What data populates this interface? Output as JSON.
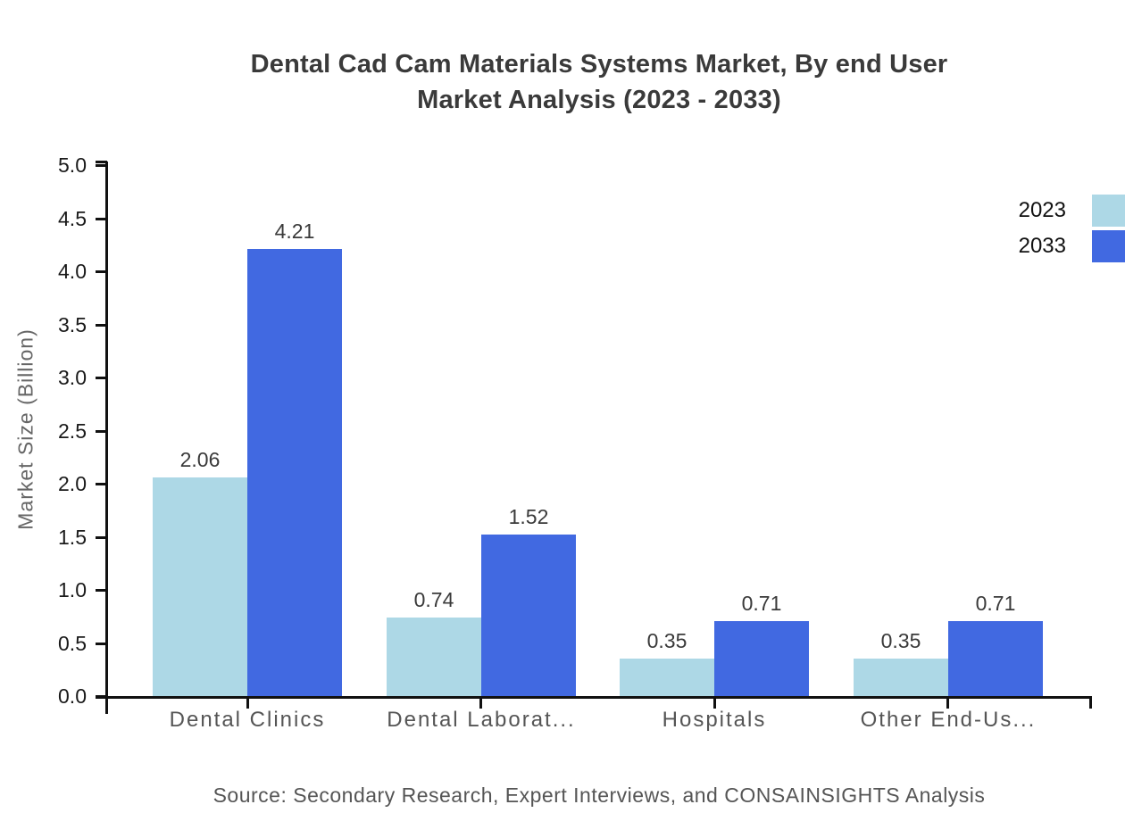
{
  "page": {
    "title_line1": "Dental Cad Cam Materials Systems Market, By end User",
    "title_line2": "Market Analysis (2023 - 2033)",
    "source_text": "Source: Secondary Research, Expert Interviews, and CONSAINSIGHTS Analysis"
  },
  "chart_data": {
    "type": "bar",
    "title": "Dental Cad Cam Materials Systems Market, By end User Market Analysis (2023 - 2033)",
    "xlabel": "",
    "ylabel": "Market Size (Billion)",
    "ylim": [
      0,
      5
    ],
    "ytick_step": 0.5,
    "ytick_decimals": 1,
    "value_label_decimals": 2,
    "grid": false,
    "legend_position": "top-right",
    "categories": [
      "Dental Clinics",
      "Dental Laborat...",
      "Hospitals",
      "Other End-Us..."
    ],
    "series": [
      {
        "name": "2023",
        "color": "#ADD8E6",
        "values": [
          2.06,
          0.74,
          0.35,
          0.35
        ]
      },
      {
        "name": "2033",
        "color": "#4169E1",
        "values": [
          4.21,
          1.52,
          0.71,
          0.71
        ]
      }
    ],
    "axis_color": "#111111",
    "text_colors": {
      "title": "#3a3a3a",
      "tick_labels": "#1a1a1a",
      "category_labels": "#555555",
      "value_labels": "#3a3a3a",
      "axis_title": "#666666",
      "legend": "#111111",
      "source": "#555555"
    }
  }
}
